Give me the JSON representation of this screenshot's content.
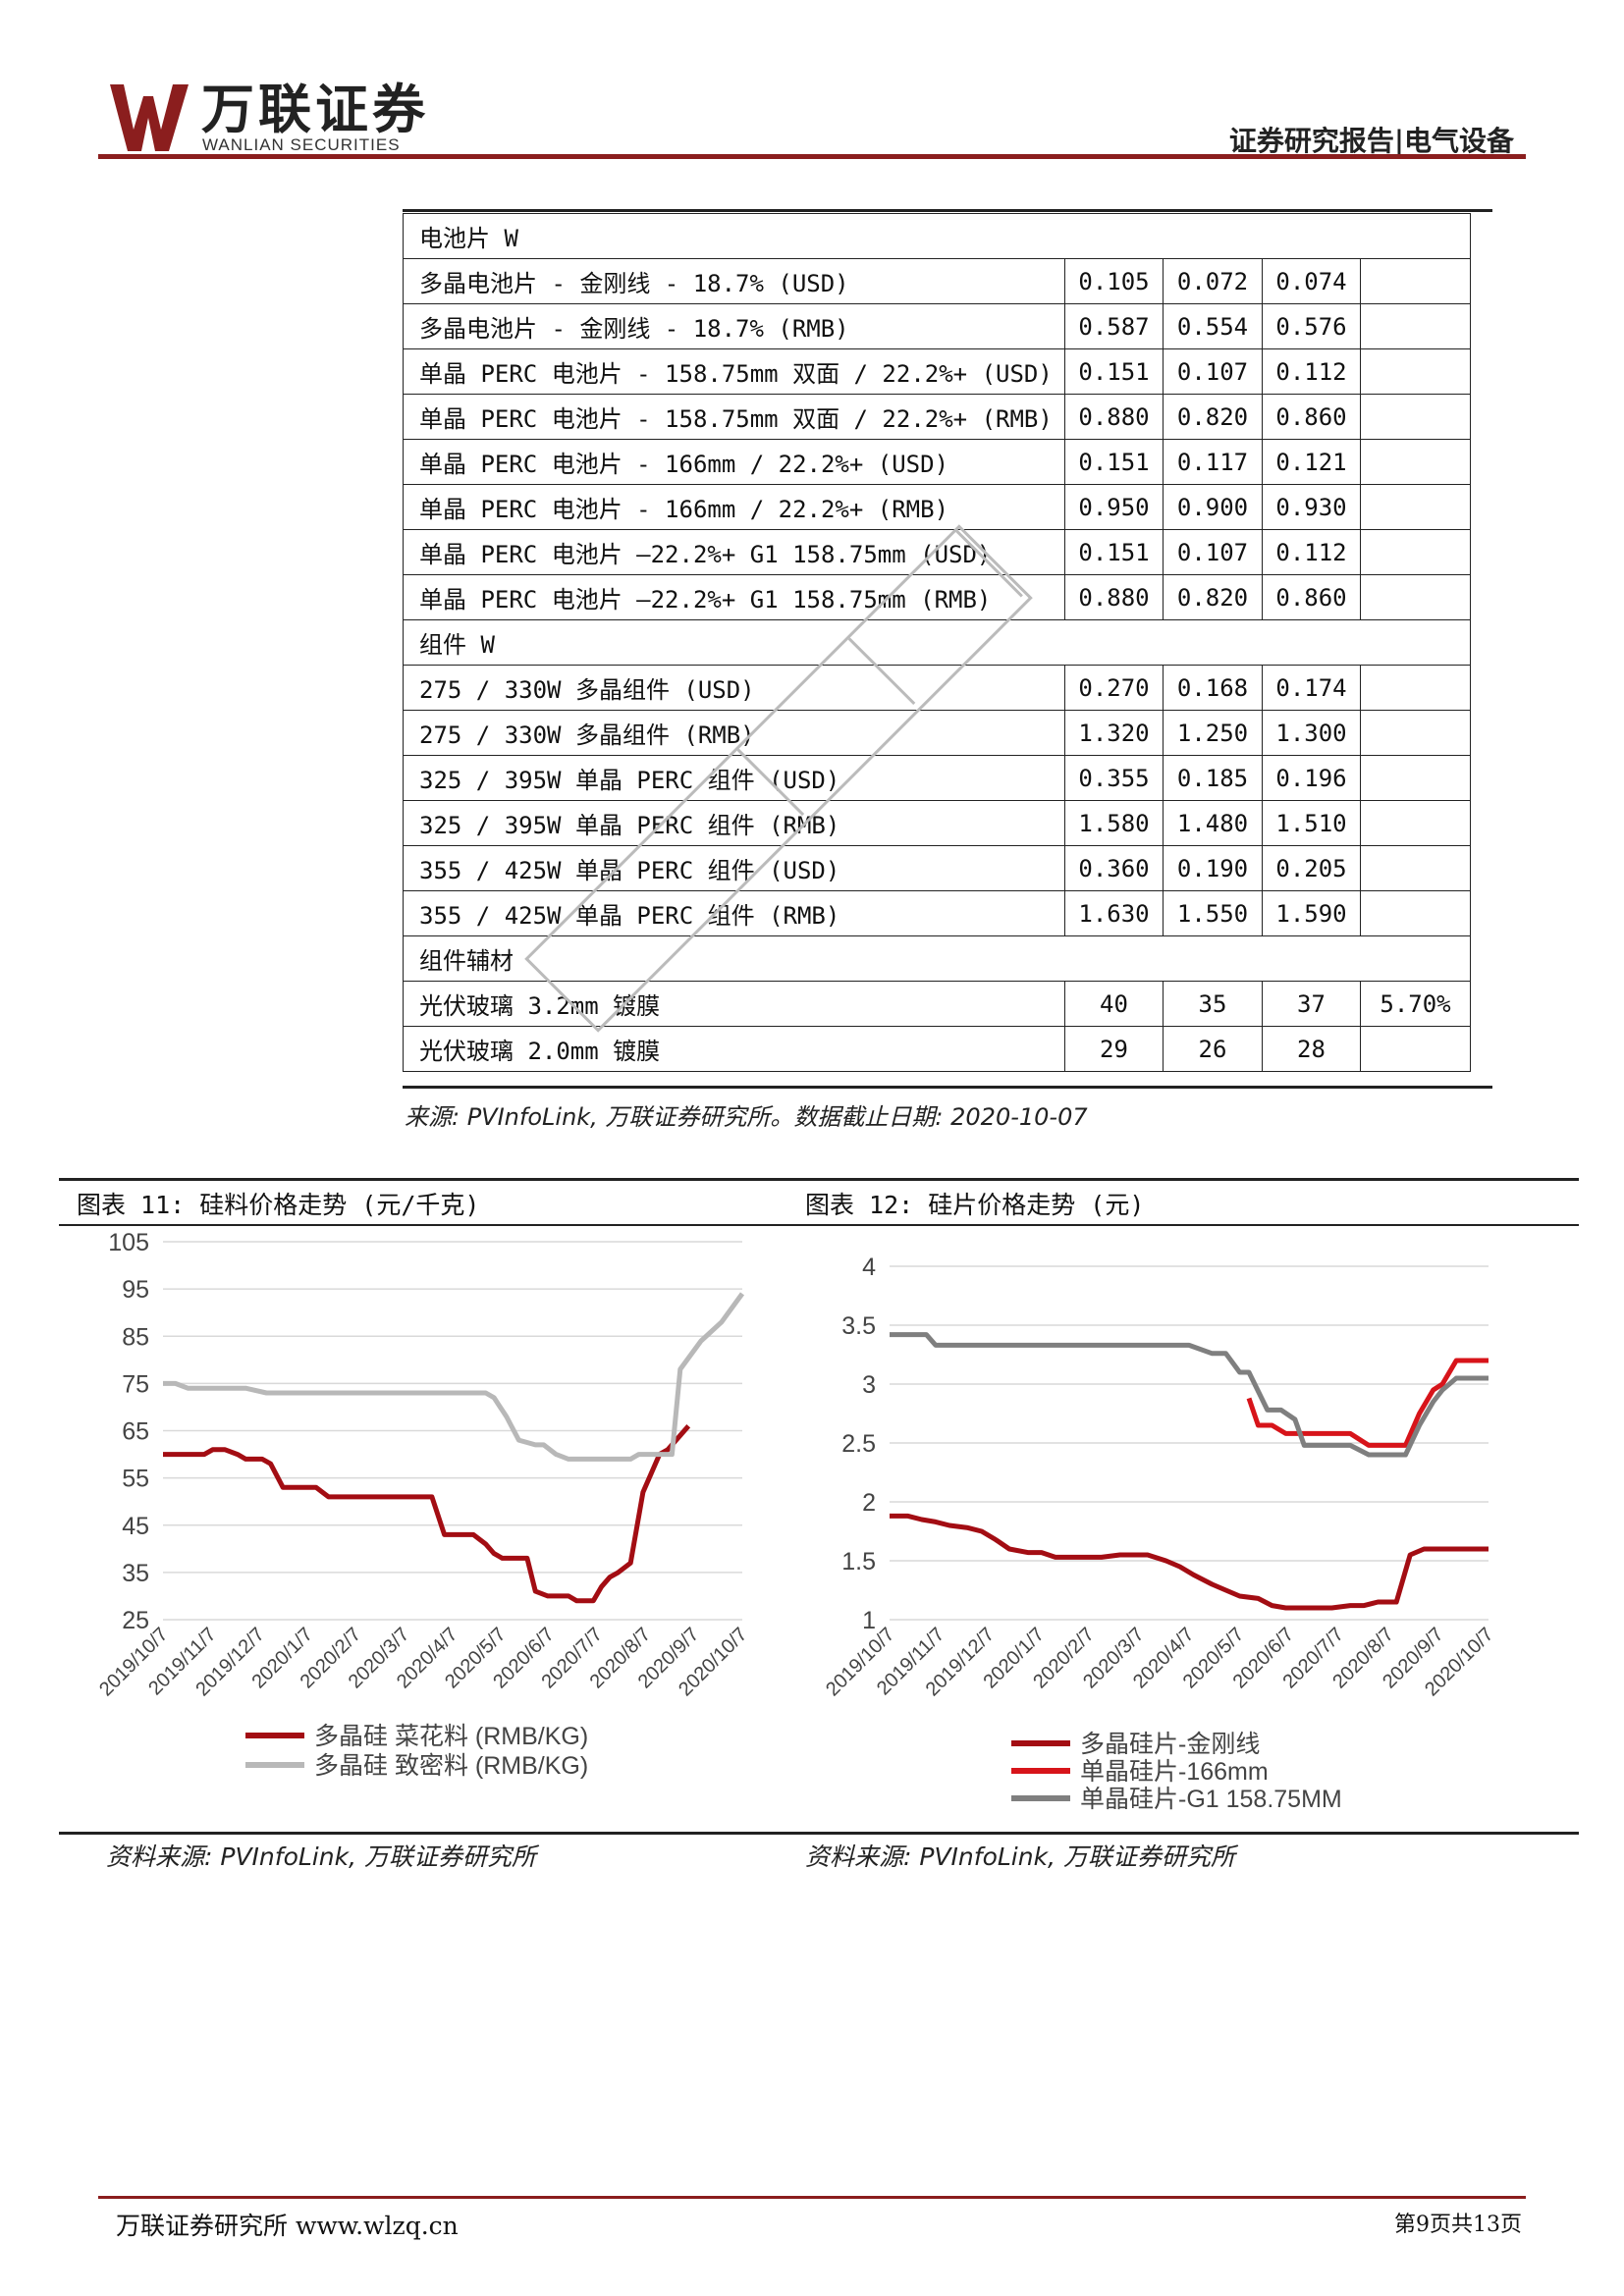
{
  "header": {
    "logo_cn": "万联证券",
    "logo_en": "WANLIAN SECURITIES",
    "report_type": "证券研究报告|电气设备",
    "brand_color": "#8b1e1e"
  },
  "price_table": {
    "rows": [
      {
        "type": "section",
        "label": "电池片 W"
      },
      {
        "type": "row",
        "label": "多晶电池片 - 金刚线 - 18.7% (USD)",
        "v1": "0.105",
        "v2": "0.072",
        "v3": "0.074",
        "v4": ""
      },
      {
        "type": "row",
        "label": "多晶电池片 - 金刚线 - 18.7% (RMB)",
        "v1": "0.587",
        "v2": "0.554",
        "v3": "0.576",
        "v4": ""
      },
      {
        "type": "row",
        "label": "单晶 PERC 电池片 - 158.75mm 双面 / 22.2%+ (USD)",
        "v1": "0.151",
        "v2": "0.107",
        "v3": "0.112",
        "v4": ""
      },
      {
        "type": "row",
        "label": "单晶 PERC 电池片 - 158.75mm 双面 / 22.2%+ (RMB)",
        "v1": "0.880",
        "v2": "0.820",
        "v3": "0.860",
        "v4": ""
      },
      {
        "type": "row",
        "label": "单晶 PERC 电池片 - 166mm / 22.2%+ (USD)",
        "v1": "0.151",
        "v2": "0.117",
        "v3": "0.121",
        "v4": ""
      },
      {
        "type": "row",
        "label": "单晶 PERC 电池片 - 166mm / 22.2%+ (RMB)",
        "v1": "0.950",
        "v2": "0.900",
        "v3": "0.930",
        "v4": ""
      },
      {
        "type": "row",
        "label": "单晶 PERC 电池片 –22.2%+ G1 158.75mm (USD)",
        "v1": "0.151",
        "v2": "0.107",
        "v3": "0.112",
        "v4": ""
      },
      {
        "type": "row",
        "label": "单晶 PERC 电池片 –22.2%+ G1 158.75mm (RMB)",
        "v1": "0.880",
        "v2": "0.820",
        "v3": "0.860",
        "v4": ""
      },
      {
        "type": "section",
        "label": "组件 W"
      },
      {
        "type": "row",
        "label": "275 / 330W 多晶组件 (USD)",
        "v1": "0.270",
        "v2": "0.168",
        "v3": "0.174",
        "v4": ""
      },
      {
        "type": "row",
        "label": "275 / 330W 多晶组件 (RMB)",
        "v1": "1.320",
        "v2": "1.250",
        "v3": "1.300",
        "v4": ""
      },
      {
        "type": "row",
        "label": "325 / 395W 单晶 PERC 组件 (USD)",
        "v1": "0.355",
        "v2": "0.185",
        "v3": "0.196",
        "v4": ""
      },
      {
        "type": "row",
        "label": "325 / 395W 单晶 PERC 组件 (RMB)",
        "v1": "1.580",
        "v2": "1.480",
        "v3": "1.510",
        "v4": ""
      },
      {
        "type": "row",
        "label": "355 / 425W 单晶 PERC 组件 (USD)",
        "v1": "0.360",
        "v2": "0.190",
        "v3": "0.205",
        "v4": ""
      },
      {
        "type": "row",
        "label": "355 / 425W 单晶 PERC 组件 (RMB)",
        "v1": "1.630",
        "v2": "1.550",
        "v3": "1.590",
        "v4": ""
      },
      {
        "type": "section",
        "label": "组件辅材"
      },
      {
        "type": "row",
        "label": "光伏玻璃 3.2mm 镀膜",
        "v1": "40",
        "v2": "35",
        "v3": "37",
        "v4": "5.70%"
      },
      {
        "type": "row",
        "label": "光伏玻璃 2.0mm 镀膜",
        "v1": "29",
        "v2": "26",
        "v3": "28",
        "v4": ""
      }
    ],
    "source": "来源: PVInfoLink, 万联证券研究所。数据截止日期: 2020-10-07"
  },
  "figure11": {
    "title": "图表 11: 硅料价格走势 (元/千克)",
    "source": "资料来源: PVInfoLink, 万联证券研究所"
  },
  "figure12": {
    "title": "图表 12: 硅片价格走势 (元)",
    "source": "资料来源: PVInfoLink, 万联证券研究所"
  },
  "chart_data": [
    {
      "type": "line",
      "title": "",
      "ylim": [
        25,
        105
      ],
      "yticks": [
        105,
        95,
        85,
        75,
        65,
        55,
        45,
        35,
        25
      ],
      "x_tick_labels": [
        "2019/10/7",
        "2019/11/7",
        "2019/12/7",
        "2020/1/7",
        "2020/2/7",
        "2020/3/7",
        "2020/4/7",
        "2020/5/7",
        "2020/6/7",
        "2020/7/7",
        "2020/8/7",
        "2020/9/7",
        "2020/10/7"
      ],
      "grid": "horizontal",
      "legend_position": "bottom-left",
      "series": [
        {
          "name": "多晶硅 菜花料 (RMB/KG)",
          "color": "#a30d13",
          "x": [
            0,
            0.5,
            0.8,
            1.0,
            1.2,
            1.5,
            1.8,
            2.0,
            2.2,
            2.4,
            2.6,
            2.9,
            3.1,
            3.4,
            3.7,
            4.0,
            4.3,
            4.6,
            5.0,
            5.2,
            5.5,
            5.8,
            6.0,
            6.2,
            6.5,
            6.8,
            7.0,
            7.2,
            7.5,
            7.8,
            8.0,
            8.2,
            8.5,
            8.8,
            9.0,
            9.3,
            9.6,
            9.8,
            10.0,
            10.2,
            10.4,
            10.6,
            10.8,
            11.0,
            11.3,
            11.6,
            12.0,
            12.2,
            12.5,
            12.7
          ],
          "y": [
            60,
            60,
            60,
            60,
            61,
            61,
            60,
            59,
            59,
            59,
            58,
            53,
            53,
            53,
            53,
            51,
            51,
            51,
            51,
            51,
            51,
            51,
            51,
            51,
            51,
            43,
            43,
            43,
            43,
            41,
            39,
            38,
            38,
            38,
            31,
            30,
            30,
            30,
            29,
            29,
            29,
            32,
            34,
            35,
            37,
            52,
            60,
            61,
            64,
            66
          ]
        },
        {
          "name": "多晶硅 致密料 (RMB/KG)",
          "color": "#b8b8b8",
          "x": [
            0,
            0.3,
            0.6,
            1.0,
            1.5,
            2.0,
            2.5,
            3.0,
            3.5,
            4.0,
            5.0,
            6.0,
            7.0,
            7.3,
            7.5,
            7.8,
            8.0,
            8.3,
            8.6,
            9.0,
            9.2,
            9.5,
            9.8,
            10.0,
            10.5,
            11.0,
            11.3,
            11.5,
            11.8,
            12.0,
            12.3,
            12.5,
            13.0,
            13.5,
            14.0
          ],
          "y": [
            75,
            75,
            74,
            74,
            74,
            74,
            73,
            73,
            73,
            73,
            73,
            73,
            73,
            73,
            73,
            73,
            72,
            68,
            63,
            62,
            62,
            60,
            59,
            59,
            59,
            59,
            59,
            60,
            60,
            60,
            60,
            78,
            84,
            88,
            94
          ]
        }
      ]
    },
    {
      "type": "line",
      "title": "",
      "ylim": [
        1,
        4
      ],
      "yticks": [
        4,
        3.5,
        3,
        2.5,
        2,
        1.5,
        1
      ],
      "x_tick_labels": [
        "2019/10/7",
        "2019/11/7",
        "2019/12/7",
        "2020/1/7",
        "2020/2/7",
        "2020/3/7",
        "2020/4/7",
        "2020/5/7",
        "2020/6/7",
        "2020/7/7",
        "2020/8/7",
        "2020/9/7",
        "2020/10/7"
      ],
      "grid": "horizontal",
      "legend_position": "bottom-left",
      "series": [
        {
          "name": "多晶硅片-金刚线",
          "color": "#a30d13",
          "x": [
            0,
            0.4,
            0.7,
            1.0,
            1.3,
            1.7,
            2.0,
            2.3,
            2.6,
            3.0,
            3.3,
            3.6,
            4.0,
            4.3,
            4.6,
            5.0,
            5.3,
            5.6,
            6.0,
            6.3,
            6.6,
            7.0,
            7.3,
            7.6,
            8.0,
            8.3,
            8.6,
            9.0,
            9.3,
            9.6,
            10.0,
            10.3,
            10.6,
            11.0,
            11.3,
            11.6,
            12.0,
            12.5,
            13.0
          ],
          "y": [
            1.88,
            1.88,
            1.85,
            1.83,
            1.8,
            1.78,
            1.75,
            1.68,
            1.6,
            1.57,
            1.57,
            1.53,
            1.53,
            1.53,
            1.53,
            1.55,
            1.55,
            1.55,
            1.5,
            1.45,
            1.38,
            1.3,
            1.25,
            1.2,
            1.18,
            1.12,
            1.1,
            1.1,
            1.1,
            1.1,
            1.12,
            1.12,
            1.15,
            1.15,
            1.55,
            1.6,
            1.6,
            1.6,
            1.6
          ]
        },
        {
          "name": "单晶硅片-166mm",
          "color": "#d7141a",
          "x": [
            7.8,
            8.0,
            8.3,
            8.6,
            9.0,
            9.5,
            10.0,
            10.4,
            10.8,
            11.2,
            11.5,
            11.8,
            12.0,
            12.3,
            12.5,
            12.8,
            13.0
          ],
          "y": [
            2.88,
            2.65,
            2.65,
            2.58,
            2.58,
            2.58,
            2.58,
            2.48,
            2.48,
            2.48,
            2.75,
            2.95,
            3.0,
            3.2,
            3.2,
            3.2,
            3.2
          ]
        },
        {
          "name": "单晶硅片-G1 158.75MM",
          "color": "#7f7f7f",
          "x": [
            0,
            0.5,
            0.8,
            1.0,
            1.5,
            2.0,
            3.0,
            4.0,
            5.0,
            6.0,
            6.5,
            7.0,
            7.3,
            7.6,
            7.8,
            8.2,
            8.5,
            8.8,
            9.0,
            9.5,
            10.0,
            10.4,
            10.8,
            11.2,
            11.5,
            11.8,
            12.0,
            12.3,
            12.5,
            12.8,
            13.0
          ],
          "y": [
            3.42,
            3.42,
            3.42,
            3.33,
            3.33,
            3.33,
            3.33,
            3.33,
            3.33,
            3.33,
            3.33,
            3.26,
            3.26,
            3.1,
            3.1,
            2.78,
            2.78,
            2.7,
            2.48,
            2.48,
            2.48,
            2.4,
            2.4,
            2.4,
            2.65,
            2.85,
            2.95,
            3.05,
            3.05,
            3.05,
            3.05
          ]
        }
      ]
    }
  ],
  "footer": {
    "left": "万联证券研究所 www.wlzq.cn",
    "right": "第9页共13页"
  }
}
